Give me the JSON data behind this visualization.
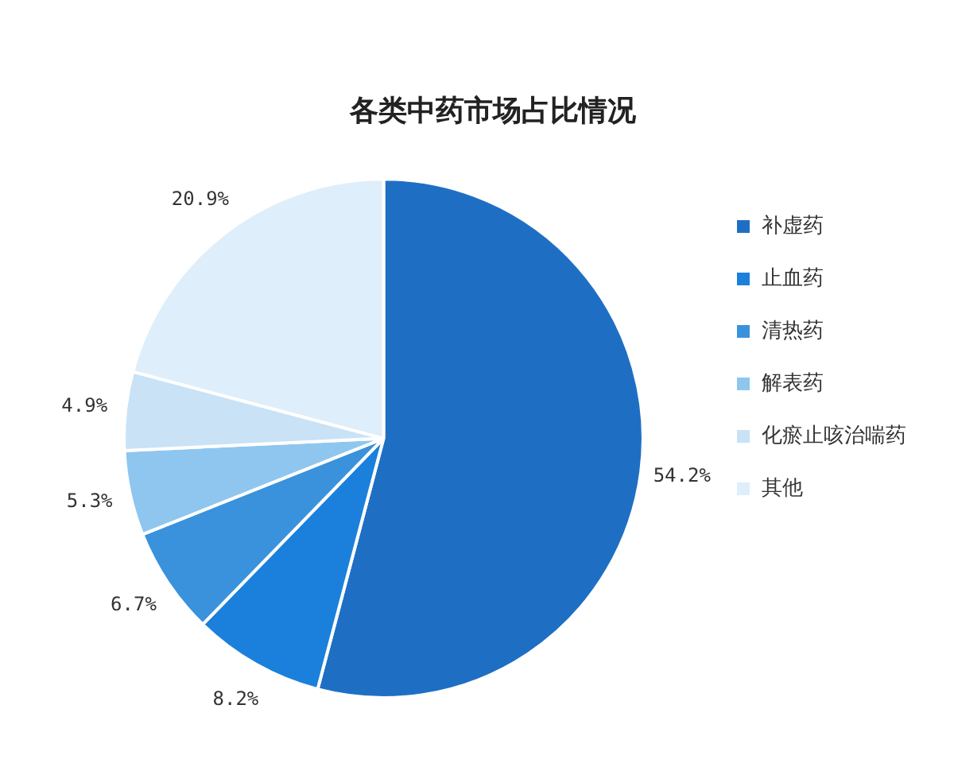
{
  "chart_data": {
    "type": "pie",
    "title": "各类中药市场占比情况",
    "categories": [
      "补虚药",
      "止血药",
      "清热药",
      "解表药",
      "化瘀止咳治喘药",
      "其他"
    ],
    "values": [
      54.2,
      8.2,
      6.7,
      5.3,
      4.9,
      20.9
    ],
    "value_labels": [
      "54.2%",
      "8.2%",
      "6.7%",
      "5.3%",
      "4.9%",
      "20.9%"
    ],
    "colors": [
      "#1e6fc4",
      "#1a80dc",
      "#3a92dc",
      "#8fc6ef",
      "#c9e2f6",
      "#deeefa"
    ],
    "legend": "right"
  }
}
